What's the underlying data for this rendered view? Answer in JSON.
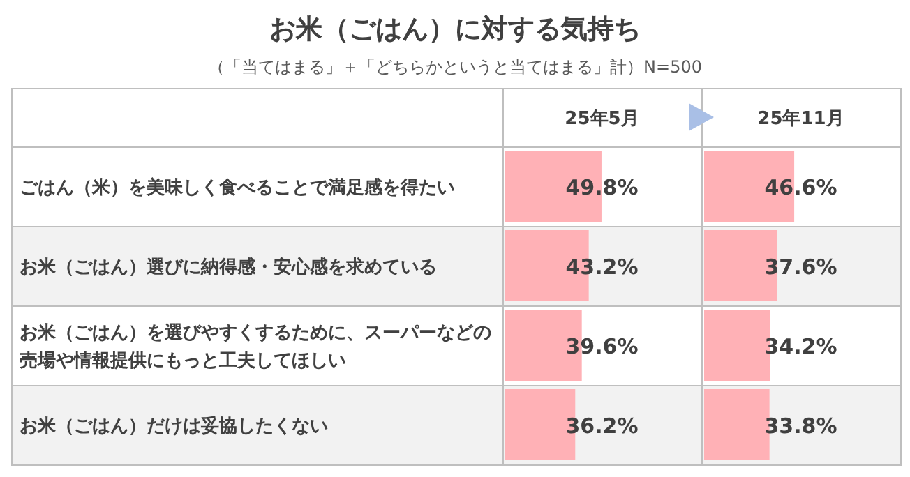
{
  "chart_data": [
    {
      "type": "bar",
      "orientation": "horizontal",
      "title": "お米（ごはん）に対する気持ち",
      "subtitle": "（「当てはまる」＋「どちらかというと当てはまる」計）N=500",
      "legend_title": "25年5月",
      "categories": [
        "ごはん（米）を美味しく食べることで満足感を得たい",
        "お米（ごはん）選びに納得感・安心感を求めている",
        "お米（ごはん）を選びやすくするために、スーパーなどの売場や情報提供にもっと工夫してほしい",
        "お米（ごはん）だけは妥協したくない"
      ],
      "values": [
        49.8,
        43.2,
        39.6,
        36.2
      ],
      "value_labels": [
        "49.8%",
        "43.2%",
        "39.6%",
        "36.2%"
      ],
      "color": "#ffb1b6",
      "xlim": [
        0,
        100
      ],
      "tick_labels": false
    },
    {
      "type": "bar",
      "orientation": "horizontal",
      "legend_title": "25年11月",
      "categories": [
        null,
        null,
        null,
        null
      ],
      "values": [
        46.6,
        37.6,
        34.2,
        33.8
      ],
      "value_labels": [
        "46.6%",
        "37.6%",
        "34.2%",
        "33.8%"
      ],
      "color": "#ffb1b6",
      "xlim": [
        0,
        100
      ],
      "tick_labels": false
    }
  ]
}
